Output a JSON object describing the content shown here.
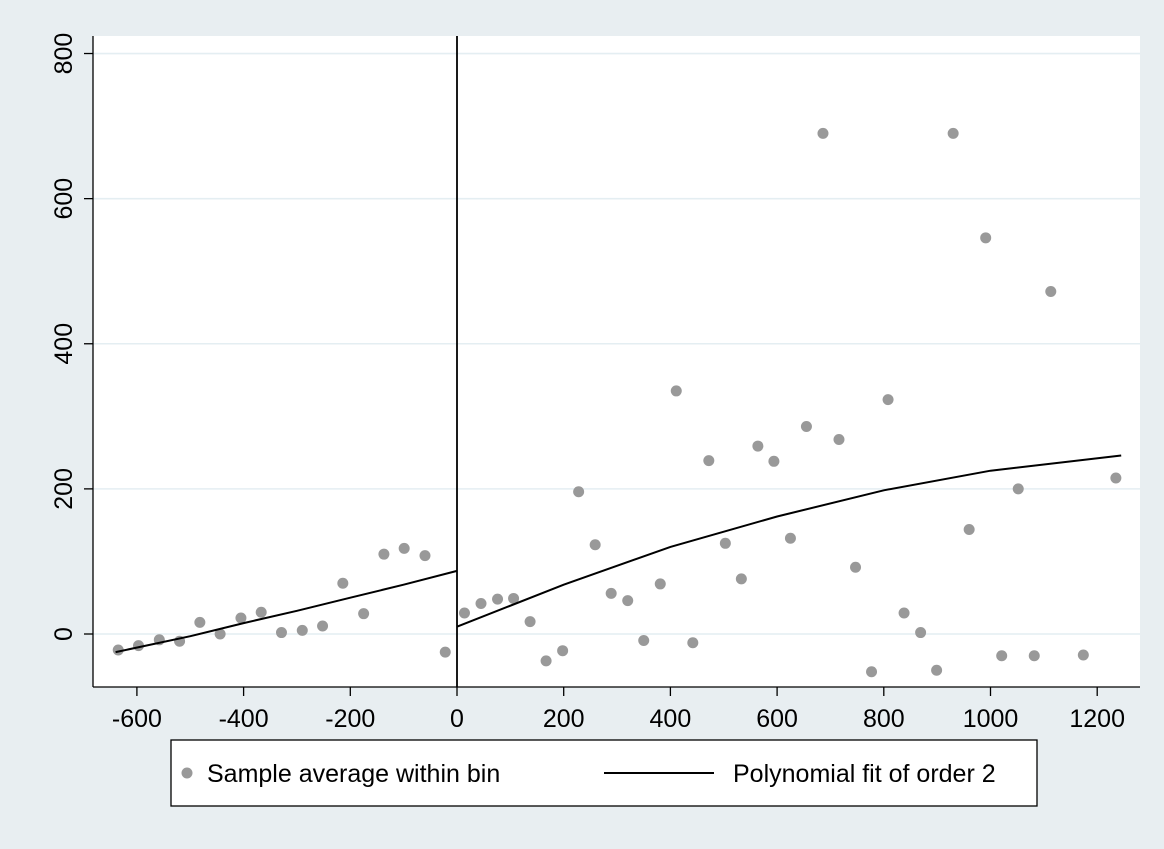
{
  "chart_data": {
    "type": "scatter",
    "title": "",
    "xlabel": "",
    "ylabel": "",
    "xlim": [
      -680,
      1280
    ],
    "ylim": [
      -75,
      830
    ],
    "xticks": [
      -600,
      -400,
      -200,
      0,
      200,
      400,
      600,
      800,
      1000,
      1200
    ],
    "yticks": [
      0,
      200,
      400,
      600,
      800
    ],
    "xtick_labels": [
      "-600",
      "-400",
      "-200",
      "0",
      "200",
      "400",
      "600",
      "800",
      "1000",
      "1200"
    ],
    "ytick_labels": [
      "0",
      "200",
      "400",
      "600",
      "800"
    ],
    "grid": "horizontal",
    "cutoff_x": 0,
    "legend_position": "bottom",
    "colors": {
      "points": "#999999",
      "line": "#000000",
      "background": "#e8eef1",
      "plot_background": "#ffffff",
      "grid": "#e4eef2"
    },
    "series": [
      {
        "name": "Sample average within bin",
        "kind": "scatter",
        "points": [
          [
            -635,
            -22
          ],
          [
            -597,
            -16
          ],
          [
            -558,
            -8
          ],
          [
            -520,
            -10
          ],
          [
            -482,
            16
          ],
          [
            -444,
            0
          ],
          [
            -405,
            22
          ],
          [
            -367,
            30
          ],
          [
            -329,
            2
          ],
          [
            -290,
            5
          ],
          [
            -252,
            11
          ],
          [
            -214,
            70
          ],
          [
            -175,
            28
          ],
          [
            -137,
            110
          ],
          [
            -99,
            118
          ],
          [
            -60,
            108
          ],
          [
            -22,
            -25
          ],
          [
            14,
            29
          ],
          [
            45,
            42
          ],
          [
            76,
            48
          ],
          [
            106,
            49
          ],
          [
            137,
            17
          ],
          [
            167,
            -37
          ],
          [
            198,
            -23
          ],
          [
            228,
            196
          ],
          [
            259,
            123
          ],
          [
            289,
            56
          ],
          [
            320,
            46
          ],
          [
            350,
            -9
          ],
          [
            381,
            69
          ],
          [
            411,
            335
          ],
          [
            442,
            -12
          ],
          [
            472,
            239
          ],
          [
            503,
            125
          ],
          [
            533,
            76
          ],
          [
            564,
            259
          ],
          [
            594,
            238
          ],
          [
            625,
            132
          ],
          [
            655,
            286
          ],
          [
            686,
            690
          ],
          [
            716,
            268
          ],
          [
            747,
            92
          ],
          [
            777,
            -52
          ],
          [
            808,
            323
          ],
          [
            838,
            29
          ],
          [
            869,
            2
          ],
          [
            899,
            -50
          ],
          [
            930,
            690
          ],
          [
            960,
            144
          ],
          [
            991,
            546
          ],
          [
            1021,
            -30
          ],
          [
            1052,
            200
          ],
          [
            1082,
            -30
          ],
          [
            1113,
            472
          ],
          [
            1174,
            -29
          ],
          [
            1235,
            215
          ]
        ]
      },
      {
        "name": "Polynomial fit of order 2",
        "kind": "line",
        "segments": [
          [
            [
              -640,
              -25
            ],
            [
              -500,
              -3
            ],
            [
              -400,
              15
            ],
            [
              -300,
              32
            ],
            [
              -200,
              50
            ],
            [
              -100,
              68
            ],
            [
              0,
              87
            ]
          ],
          [
            [
              0,
              10
            ],
            [
              200,
              68
            ],
            [
              400,
              120
            ],
            [
              600,
              162
            ],
            [
              800,
              198
            ],
            [
              1000,
              225
            ],
            [
              1245,
              246
            ]
          ]
        ]
      }
    ]
  }
}
